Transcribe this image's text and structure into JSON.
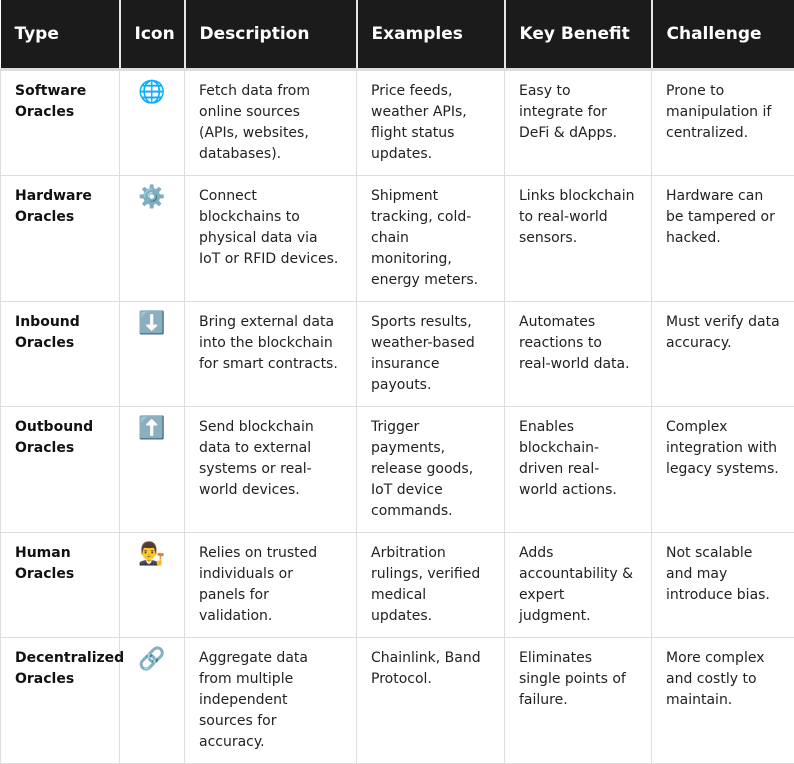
{
  "headers": [
    "Type",
    "Icon",
    "Description",
    "Examples",
    "Key Benefit",
    "Challenge"
  ],
  "rows": [
    {
      "type": "Software Oracles",
      "icon": "🌐",
      "icon_name": "globe-icon",
      "description": "Fetch data from online sources (APIs, websites, databases).",
      "examples": "Price feeds, weather APIs, flight status updates.",
      "benefit": "Easy to integrate for DeFi & dApps.",
      "challenge": "Prone to manipulation if centralized."
    },
    {
      "type": "Hardware Oracles",
      "icon": "⚙️",
      "icon_name": "gear-icon",
      "description": "Connect blockchains to physical data via IoT or RFID devices.",
      "examples": "Shipment tracking, cold-chain monitoring, energy meters.",
      "benefit": "Links blockchain to real-world sensors.",
      "challenge": "Hardware can be tampered or hacked."
    },
    {
      "type": "Inbound Oracles",
      "icon": "⬇️",
      "icon_name": "down-arrow-icon",
      "description": "Bring external data into the blockchain for smart contracts.",
      "examples": "Sports results, weather-based insurance payouts.",
      "benefit": "Automates reactions to real-world data.",
      "challenge": "Must verify data accuracy."
    },
    {
      "type": "Outbound Oracles",
      "icon": "⬆️",
      "icon_name": "up-arrow-icon",
      "description": "Send blockchain data to external systems or real-world devices.",
      "examples": "Trigger payments, release goods, IoT device commands.",
      "benefit": "Enables blockchain-driven real-world actions.",
      "challenge": "Complex integration with legacy systems."
    },
    {
      "type": "Human Oracles",
      "icon": "👨‍⚖️",
      "icon_name": "judge-icon",
      "description": "Relies on trusted individuals or panels for validation.",
      "examples": "Arbitration rulings, verified medical updates.",
      "benefit": "Adds accountability & expert judgment.",
      "challenge": "Not scalable and may introduce bias."
    },
    {
      "type": "Decentralized Oracles",
      "icon": "🔗",
      "icon_name": "link-icon",
      "description": "Aggregate data from multiple independent sources for accuracy.",
      "examples": "Chainlink, Band Protocol.",
      "benefit": "Eliminates single points of failure.",
      "challenge": "More complex and costly to maintain."
    }
  ]
}
